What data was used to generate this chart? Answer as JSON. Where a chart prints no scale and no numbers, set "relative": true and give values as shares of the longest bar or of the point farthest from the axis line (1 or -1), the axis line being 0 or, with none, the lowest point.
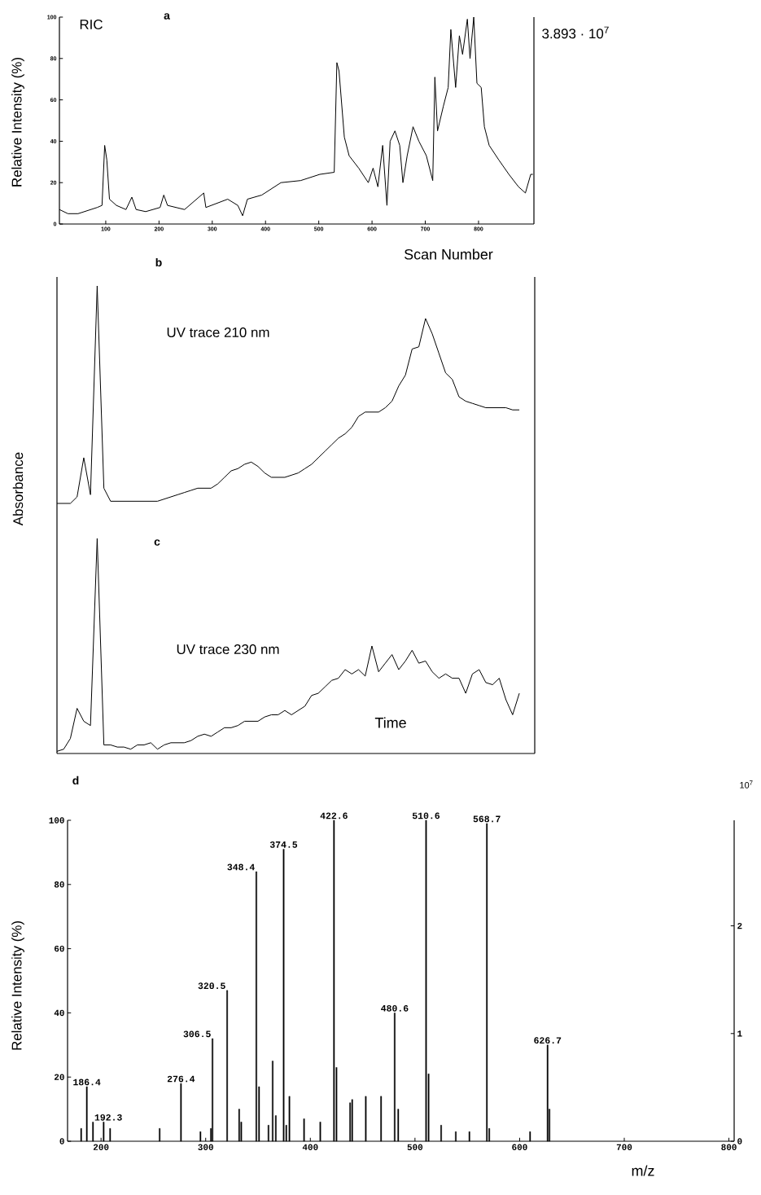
{
  "chart_data": [
    {
      "type": "line",
      "title": "a",
      "xlabel": "Scan Number",
      "ylabel": "Relative Intensity (%)",
      "annotations": [
        "RIC",
        "3.893 · 10$^{7}$"
      ],
      "color": "#000000",
      "xlim": [
        13,
        904
      ],
      "ylim": [
        0,
        100
      ],
      "xticks": [
        100,
        200,
        300,
        400,
        500,
        600,
        700,
        800
      ],
      "yticks": [
        0,
        20,
        40,
        60,
        80,
        100
      ],
      "x": [
        13,
        29,
        48,
        84,
        93,
        98,
        102,
        107,
        120,
        138,
        149,
        157,
        175,
        202,
        209,
        216,
        248,
        284,
        288,
        329,
        348,
        357,
        366,
        393,
        429,
        466,
        502,
        529,
        534,
        538,
        548,
        557,
        575,
        593,
        602,
        611,
        620,
        628,
        634,
        643,
        652,
        658,
        666,
        677,
        688,
        702,
        714,
        718,
        723,
        734,
        743,
        748,
        757,
        764,
        770,
        779,
        784,
        791,
        797,
        805,
        811,
        820,
        838,
        857,
        875,
        888,
        898,
        902
      ],
      "values": [
        7,
        5,
        5,
        8,
        9,
        38,
        31,
        12,
        9,
        7,
        13,
        7,
        6,
        8,
        14,
        9,
        7,
        15,
        8,
        12,
        9,
        4,
        12,
        14,
        20,
        21,
        24,
        25,
        78,
        74,
        42,
        33,
        27,
        20,
        27,
        18,
        38,
        9,
        40,
        45,
        38,
        20,
        33,
        47,
        40,
        33,
        21,
        71,
        45,
        57,
        66,
        94,
        66,
        91,
        82,
        99,
        80,
        100,
        68,
        66,
        47,
        38,
        31,
        24,
        18,
        15,
        24,
        24
      ]
    },
    {
      "type": "line",
      "title": "b",
      "ylabel": "Absorbance",
      "annotations": [
        "UV trace 210 nm"
      ],
      "relative": true,
      "color": "#000000",
      "categories": [
        null,
        null,
        null,
        null,
        null,
        null,
        null,
        null,
        null,
        null,
        null,
        null,
        null,
        null,
        null,
        null,
        null,
        null,
        null,
        null,
        null,
        null,
        null,
        null,
        null,
        null,
        null,
        null,
        null,
        null,
        null,
        null,
        null,
        null,
        null,
        null,
        null,
        null,
        null,
        null,
        null,
        null,
        null,
        null,
        null,
        null,
        null,
        null,
        null,
        null,
        null,
        null,
        null,
        null,
        null,
        null,
        null,
        null,
        null,
        null,
        null,
        null,
        null,
        null,
        null,
        null,
        null,
        null,
        null,
        null
      ],
      "values": [
        0,
        0,
        0,
        0.03,
        0.21,
        0.04,
        1.0,
        0.07,
        0.01,
        0.01,
        0.01,
        0.01,
        0.01,
        0.01,
        0.01,
        0.01,
        0.02,
        0.03,
        0.04,
        0.05,
        0.06,
        0.07,
        0.07,
        0.07,
        0.09,
        0.12,
        0.15,
        0.16,
        0.18,
        0.19,
        0.17,
        0.14,
        0.12,
        0.12,
        0.12,
        0.13,
        0.14,
        0.16,
        0.18,
        0.21,
        0.24,
        0.27,
        0.3,
        0.32,
        0.35,
        0.4,
        0.42,
        0.42,
        0.42,
        0.44,
        0.47,
        0.54,
        0.59,
        0.71,
        0.72,
        0.85,
        0.78,
        0.69,
        0.6,
        0.57,
        0.49,
        0.47,
        0.46,
        0.45,
        0.44,
        0.44,
        0.44,
        0.44,
        0.43,
        0.43
      ]
    },
    {
      "type": "line",
      "title": "c",
      "xlabel": "Time",
      "annotations": [
        "UV trace 230 nm"
      ],
      "relative": true,
      "color": "#000000",
      "categories": [
        null,
        null,
        null,
        null,
        null,
        null,
        null,
        null,
        null,
        null,
        null,
        null,
        null,
        null,
        null,
        null,
        null,
        null,
        null,
        null,
        null,
        null,
        null,
        null,
        null,
        null,
        null,
        null,
        null,
        null,
        null,
        null,
        null,
        null,
        null,
        null,
        null,
        null,
        null,
        null,
        null,
        null,
        null,
        null,
        null,
        null,
        null,
        null,
        null,
        null,
        null,
        null,
        null,
        null,
        null,
        null,
        null,
        null,
        null,
        null,
        null,
        null,
        null,
        null,
        null,
        null,
        null,
        null,
        null,
        null
      ],
      "values": [
        0.01,
        0.02,
        0.07,
        0.21,
        0.15,
        0.13,
        1.0,
        0.04,
        0.04,
        0.03,
        0.03,
        0.02,
        0.04,
        0.04,
        0.05,
        0.02,
        0.04,
        0.05,
        0.05,
        0.05,
        0.06,
        0.08,
        0.09,
        0.08,
        0.1,
        0.12,
        0.12,
        0.13,
        0.15,
        0.15,
        0.15,
        0.17,
        0.18,
        0.18,
        0.2,
        0.18,
        0.2,
        0.22,
        0.27,
        0.28,
        0.31,
        0.34,
        0.35,
        0.39,
        0.37,
        0.39,
        0.36,
        0.5,
        0.38,
        0.42,
        0.46,
        0.39,
        0.43,
        0.48,
        0.42,
        0.43,
        0.38,
        0.35,
        0.37,
        0.35,
        0.35,
        0.28,
        0.37,
        0.39,
        0.33,
        0.32,
        0.35,
        0.25,
        0.18,
        0.28
      ]
    },
    {
      "type": "bar",
      "title": "d",
      "xlabel": "m/z",
      "ylabel": "Relative Intensity (%)",
      "y2label": "10$^{7}$",
      "color": "#000000",
      "xlim": [
        168,
        805
      ],
      "ylim": [
        0,
        100
      ],
      "xticks": [
        200,
        300,
        400,
        500,
        600,
        700,
        800
      ],
      "yticks": [
        0,
        20,
        40,
        60,
        80,
        100
      ],
      "y2lim": [
        0,
        2.98
      ],
      "y2ticks": [
        0,
        1,
        2
      ],
      "x": [
        181,
        186.4,
        192.3,
        202.5,
        208.7,
        256,
        276.4,
        295,
        305,
        306.5,
        320.5,
        332,
        334,
        348.4,
        351,
        360,
        364,
        367,
        374.5,
        377,
        380,
        394,
        409.5,
        422.6,
        425,
        438,
        440,
        453,
        467.6,
        480.6,
        484,
        510.6,
        513,
        525,
        539,
        552,
        568.7,
        571,
        610,
        626.7,
        628.5
      ],
      "values": [
        4,
        17,
        6,
        6,
        4,
        4,
        18,
        3,
        4,
        32,
        47,
        10,
        6,
        84,
        17,
        5,
        25,
        8,
        91,
        5,
        14,
        7,
        6,
        100,
        23,
        12,
        13,
        14,
        14,
        40,
        10,
        100,
        21,
        5,
        3,
        3,
        99,
        4,
        3,
        30,
        10
      ],
      "annotations": [
        {
          "text": "186.4",
          "x": 186.4,
          "y": 17
        },
        {
          "text": "192.3",
          "x": 192.3,
          "y": 6
        },
        {
          "text": "276.4",
          "x": 276.4,
          "y": 18
        },
        {
          "text": "306.5",
          "x": 306.5,
          "y": 32
        },
        {
          "text": "320.5",
          "x": 320.5,
          "y": 47
        },
        {
          "text": "348.4",
          "x": 348.4,
          "y": 84
        },
        {
          "text": "374.5",
          "x": 374.5,
          "y": 91
        },
        {
          "text": "422.6",
          "x": 422.6,
          "y": 100
        },
        {
          "text": "480.6",
          "x": 480.6,
          "y": 40
        },
        {
          "text": "510.6",
          "x": 510.6,
          "y": 100
        },
        {
          "text": "568.7",
          "x": 568.7,
          "y": 99
        },
        {
          "text": "626.7",
          "x": 626.7,
          "y": 30
        }
      ]
    }
  ]
}
